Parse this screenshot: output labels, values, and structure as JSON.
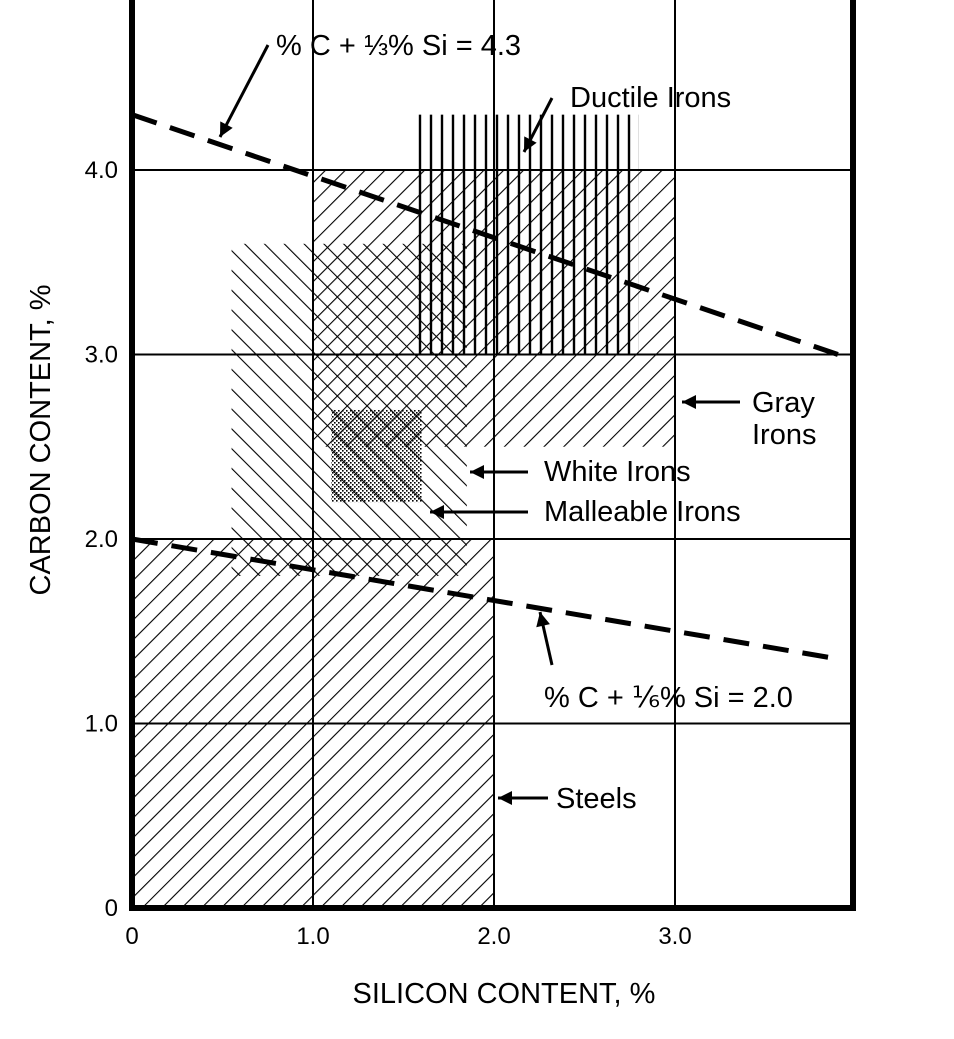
{
  "chart_data": {
    "type": "area",
    "xlabel": "SILICON CONTENT, %",
    "ylabel": "CARBON CONTENT, %",
    "xlim": [
      0,
      4.0
    ],
    "ylim": [
      0,
      5.0
    ],
    "grid": true,
    "x_ticks": [
      {
        "value": 0,
        "label": "0"
      },
      {
        "value": 1.0,
        "label": "1.0"
      },
      {
        "value": 2.0,
        "label": "2.0"
      },
      {
        "value": 3.0,
        "label": "3.0"
      }
    ],
    "y_ticks": [
      {
        "value": 0,
        "label": "0"
      },
      {
        "value": 1.0,
        "label": "1.0"
      },
      {
        "value": 2.0,
        "label": "2.0"
      },
      {
        "value": 3.0,
        "label": "3.0"
      },
      {
        "value": 4.0,
        "label": "4.0"
      }
    ],
    "regions": [
      {
        "name": "Steels",
        "si_range": [
          0,
          2.0
        ],
        "c_range": [
          0,
          2.0
        ],
        "pattern": "hatch-ne"
      },
      {
        "name": "Gray Irons",
        "si_range": [
          1.0,
          3.0
        ],
        "c_range": [
          2.5,
          4.0
        ],
        "pattern": "hatch-ne"
      },
      {
        "name": "White Irons",
        "si_range": [
          0.55,
          1.85
        ],
        "c_range": [
          1.8,
          3.6
        ],
        "pattern": "hatch-nw"
      },
      {
        "name": "Malleable Irons",
        "si_range": [
          1.1,
          1.6
        ],
        "c_range": [
          2.2,
          2.7
        ],
        "pattern": "stipple"
      },
      {
        "name": "Ductile Irons",
        "si_range": [
          1.55,
          2.8
        ],
        "c_range": [
          3.0,
          4.3
        ],
        "pattern": "vertical"
      }
    ],
    "lines": [
      {
        "label": "% C + ⅓% Si = 4.3",
        "style": "dashed",
        "points": [
          [
            0,
            4.3
          ],
          [
            3.9,
            3.0
          ]
        ]
      },
      {
        "label": "% C + ⅙% Si = 2.0",
        "style": "dashed",
        "points": [
          [
            0,
            2.0
          ],
          [
            3.9,
            1.35
          ]
        ]
      }
    ],
    "annotations": [
      {
        "text": "Ductile Irons"
      },
      {
        "text": "Gray"
      },
      {
        "text": "Irons"
      },
      {
        "text": "White Irons"
      },
      {
        "text": "Malleable Irons"
      },
      {
        "text": "Steels"
      }
    ]
  }
}
